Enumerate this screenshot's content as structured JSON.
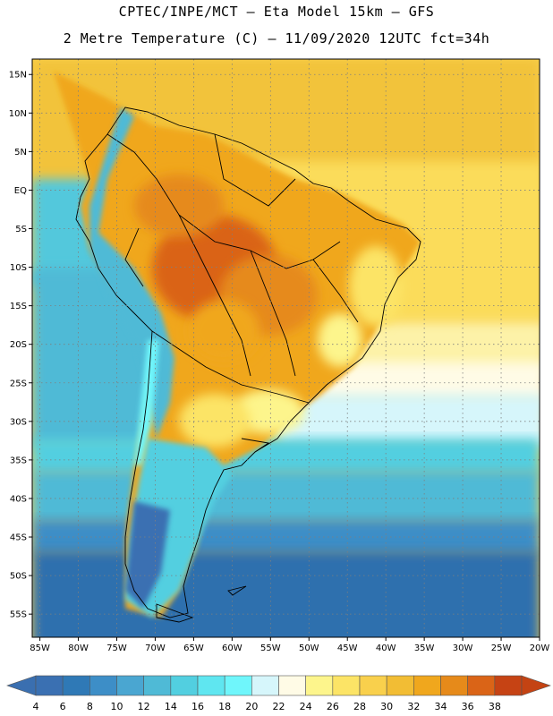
{
  "header": {
    "line1": "CPTEC/INPE/MCT –  Eta Model 15km – GFS",
    "line2": "2 Metre Temperature (C) – 11/09/2020 12UTC fct=34h"
  },
  "map": {
    "lon_range": [
      -86,
      -20
    ],
    "lat_range": [
      -58,
      17
    ],
    "lat_ticks": [
      "15N",
      "10N",
      "5N",
      "EQ",
      "5S",
      "10S",
      "15S",
      "20S",
      "25S",
      "30S",
      "35S",
      "40S",
      "45S",
      "50S",
      "55S"
    ],
    "lat_values": [
      15,
      10,
      5,
      0,
      -5,
      -10,
      -15,
      -20,
      -25,
      -30,
      -35,
      -40,
      -45,
      -50,
      -55
    ],
    "lon_ticks": [
      "85W",
      "80W",
      "75W",
      "70W",
      "65W",
      "60W",
      "55W",
      "50W",
      "45W",
      "40W",
      "35W",
      "30W",
      "25W",
      "20W"
    ],
    "lon_values": [
      -85,
      -80,
      -75,
      -70,
      -65,
      -60,
      -55,
      -50,
      -45,
      -40,
      -35,
      -30,
      -25,
      -20
    ]
  },
  "colorbar": {
    "labels": [
      "4",
      "6",
      "8",
      "10",
      "12",
      "14",
      "16",
      "18",
      "20",
      "22",
      "24",
      "26",
      "28",
      "30",
      "32",
      "34",
      "36",
      "38"
    ],
    "colors": [
      "#3a70b2",
      "#2f79b6",
      "#3d8ec7",
      "#4aa6d1",
      "#4fbad6",
      "#52cfe0",
      "#5fe6f0",
      "#6ff6fb",
      "#d6f6fb",
      "#fffbe6",
      "#fdf58c",
      "#fce466",
      "#f9d04c",
      "#f2bd34",
      "#f0a71d",
      "#e68a1a",
      "#da6417",
      "#c64314"
    ],
    "low_color": "#3a6fb0",
    "high_color": "#c44313"
  }
}
